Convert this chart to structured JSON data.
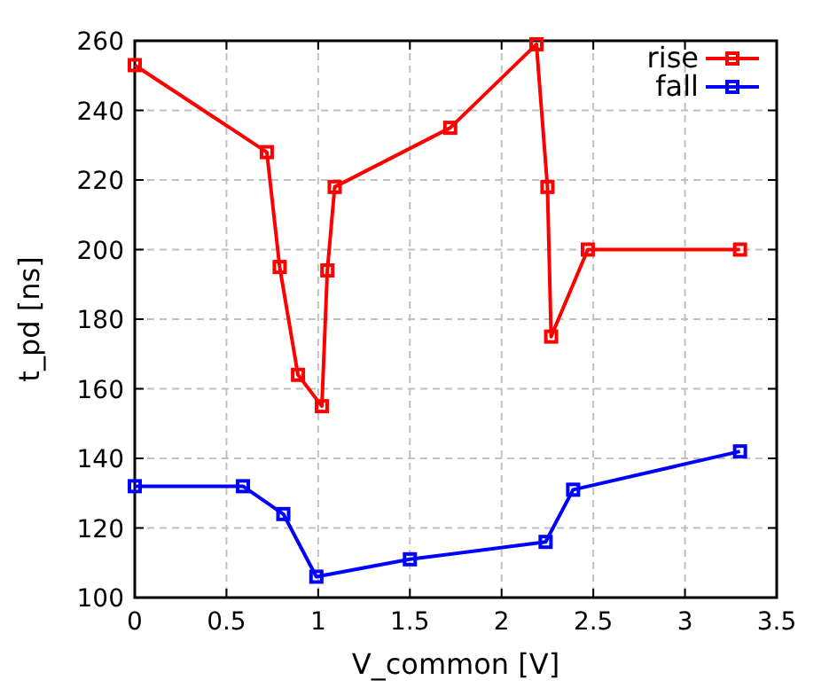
{
  "chart_data": {
    "type": "line",
    "xlabel": "V_common [V]",
    "ylabel": "t_pd [ns]",
    "xlim": [
      0,
      3.5
    ],
    "xticks": [
      0,
      0.5,
      1,
      1.5,
      2,
      2.5,
      3,
      3.5
    ],
    "ylim": [
      100,
      260
    ],
    "yticks": [
      100,
      120,
      140,
      160,
      180,
      200,
      220,
      240,
      260
    ],
    "grid": true,
    "legend": "top right",
    "marker": "square",
    "line_style": "solid",
    "series": [
      {
        "name": "rise",
        "color": "#ff0000",
        "x": [
          0,
          0.72,
          0.79,
          0.89,
          1.02,
          1.05,
          1.09,
          1.72,
          2.19,
          2.25,
          2.27,
          2.47,
          3.3
        ],
        "values": [
          253,
          228,
          195,
          164,
          155,
          194,
          218,
          235,
          259,
          218,
          175,
          200,
          200
        ]
      },
      {
        "name": "fall",
        "color": "#0000ff",
        "x": [
          0,
          0.59,
          0.81,
          0.99,
          1.5,
          2.24,
          2.39,
          3.3
        ],
        "values": [
          132,
          132,
          124,
          106,
          111,
          116,
          131,
          142
        ]
      }
    ]
  }
}
